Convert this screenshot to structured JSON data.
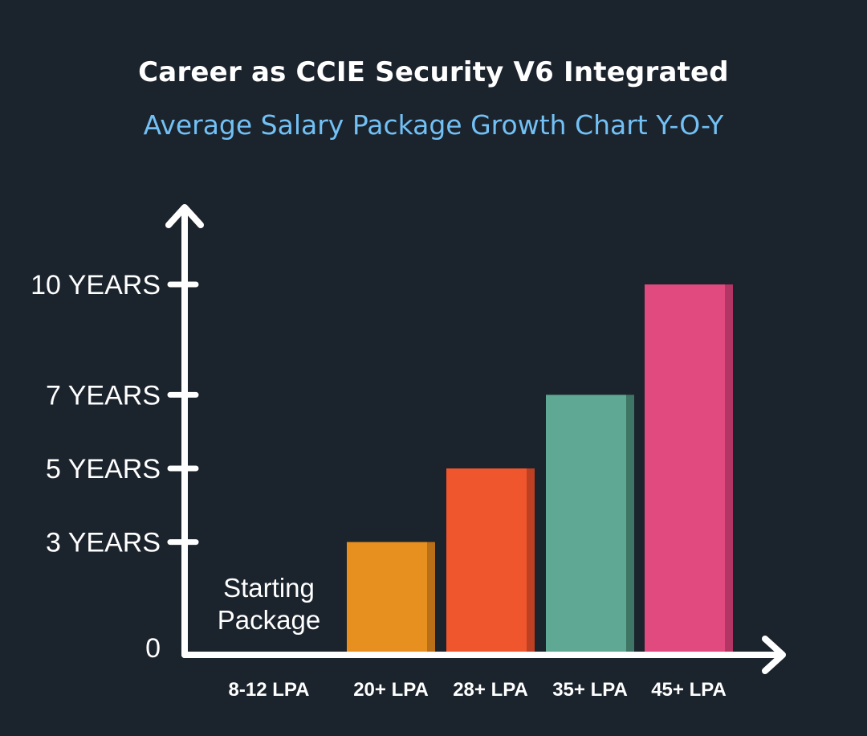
{
  "chart_data": {
    "type": "bar",
    "title": "Career as CCIE Security V6 Integrated",
    "subtitle": "Average Salary Package Growth Chart Y-O-Y",
    "xlabel": "",
    "ylabel": "",
    "categories": [
      "8-12 LPA",
      "20+ LPA",
      "28+ LPA",
      "35+ LPA",
      "45+ LPA"
    ],
    "values": [
      0,
      3,
      5,
      7,
      10
    ],
    "y_ticks": [
      {
        "value": 0,
        "label": "0"
      },
      {
        "value": 3,
        "label": "3 YEARS"
      },
      {
        "value": 5,
        "label": "5 YEARS"
      },
      {
        "value": 7,
        "label": "7 YEARS"
      },
      {
        "value": 10,
        "label": "10 YEARS"
      }
    ],
    "ylim": [
      0,
      13
    ],
    "grid": false,
    "legend": "none",
    "annotations": [
      {
        "category": "8-12 LPA",
        "lines": [
          "Starting",
          "Package"
        ]
      }
    ],
    "colors": [
      "#e8901f",
      "#f0562d",
      "#5fa994",
      "#e04a7f"
    ],
    "shade_colors": [
      "#b86f18",
      "#bd4022",
      "#3e7565",
      "#b23563"
    ],
    "axis_color": "#ffffff",
    "background": "#1b232d"
  }
}
